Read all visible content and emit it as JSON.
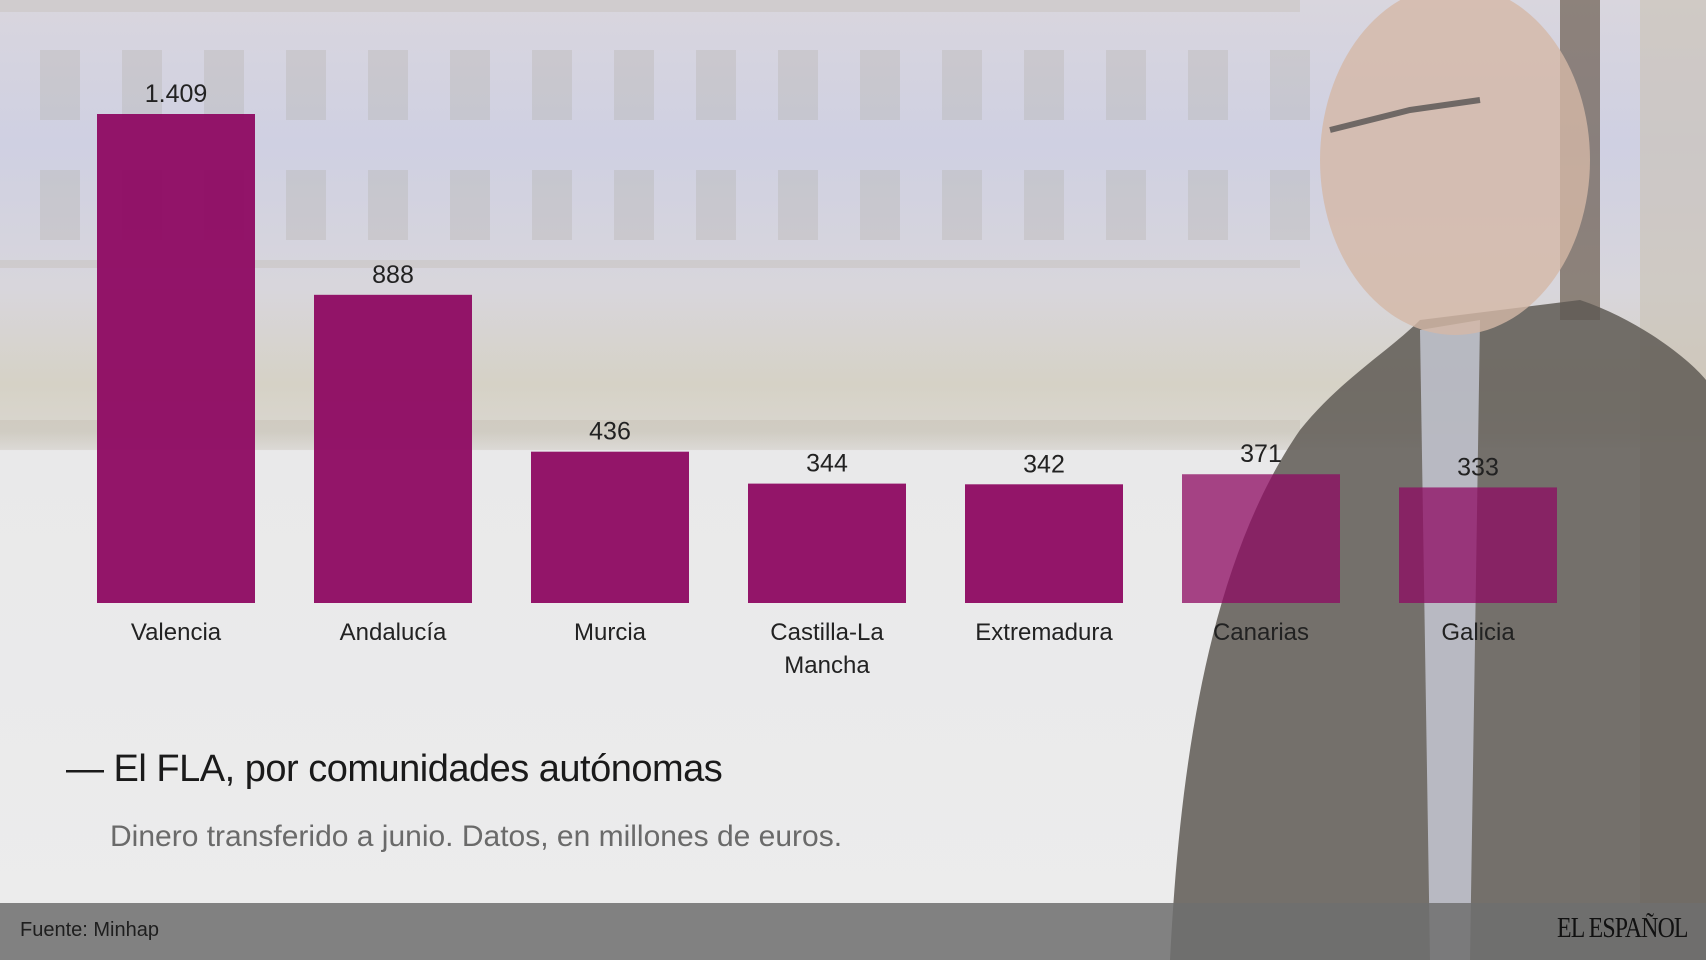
{
  "chart_data": {
    "type": "bar",
    "categories": [
      "Valencia",
      "Andalucía",
      "Murcia",
      "Castilla-La Mancha",
      "Extremadura",
      "Canarias",
      "Galicia"
    ],
    "category_lines": [
      [
        "Valencia"
      ],
      [
        "Andalucía"
      ],
      [
        "Murcia"
      ],
      [
        "Castilla-La",
        "Mancha"
      ],
      [
        "Extremadura"
      ],
      [
        "Canarias"
      ],
      [
        "Galicia"
      ]
    ],
    "values": [
      1409,
      888,
      436,
      344,
      342,
      371,
      333
    ],
    "data_labels": [
      "1.409",
      "888",
      "436",
      "344",
      "342",
      "371",
      "333"
    ],
    "title": "— El FLA, por comunidades autónomas",
    "subtitle": "Dinero transferido a junio. Datos, en millones de euros.",
    "xlabel": "",
    "ylabel": "",
    "grid": false,
    "bar_color": "#8e0a62"
  },
  "footer": {
    "source": "Fuente: Minhap",
    "logo": "EL ESPAÑOL"
  }
}
